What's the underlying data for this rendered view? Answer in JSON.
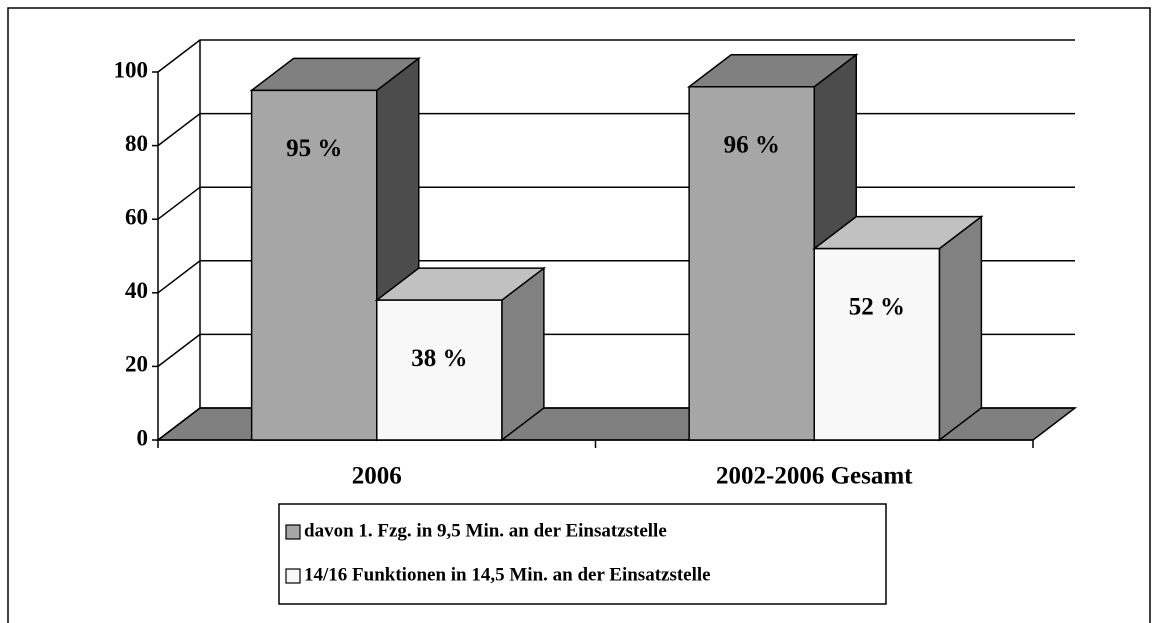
{
  "chart_data": {
    "type": "bar3d",
    "categories": [
      "2006",
      "2002-2006 Gesamt"
    ],
    "series": [
      {
        "name": "davon 1. Fzg. in 9,5 Min. an der Einsatzstelle",
        "color": "#a6a6a6",
        "values": [
          95,
          96
        ],
        "value_labels": [
          "95 %",
          "96 %"
        ]
      },
      {
        "name": "14/16 Funktionen in 14,5 Min. an der Einsatzstelle",
        "color": "#f8f8f8",
        "values": [
          38,
          52
        ],
        "value_labels": [
          "38 %",
          "52 %"
        ]
      }
    ],
    "ylim": [
      0,
      100
    ],
    "yticks": [
      0,
      20,
      40,
      60,
      80,
      100
    ],
    "grid": true,
    "legend": "bottom"
  }
}
